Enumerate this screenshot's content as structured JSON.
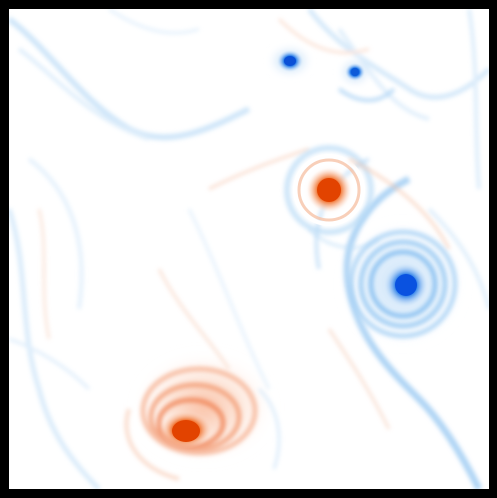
{
  "image": {
    "kind": "2D vorticity field visualization",
    "colormap": {
      "negative": "#1f77d4",
      "negative_core": "#0a5fe0",
      "neutral": "#ffffff",
      "positive": "#f0743a",
      "positive_core": "#e04a00"
    },
    "border_color": "#000000"
  },
  "vortices": [
    {
      "name": "small-blue-vortex-top-left",
      "sign": "negative"
    },
    {
      "name": "small-blue-vortex-top-right",
      "sign": "negative"
    },
    {
      "name": "orange-vortex-center",
      "sign": "positive"
    },
    {
      "name": "blue-spiral-vortex-right",
      "sign": "negative"
    },
    {
      "name": "orange-spiral-vortex-bottom-left",
      "sign": "positive"
    }
  ]
}
